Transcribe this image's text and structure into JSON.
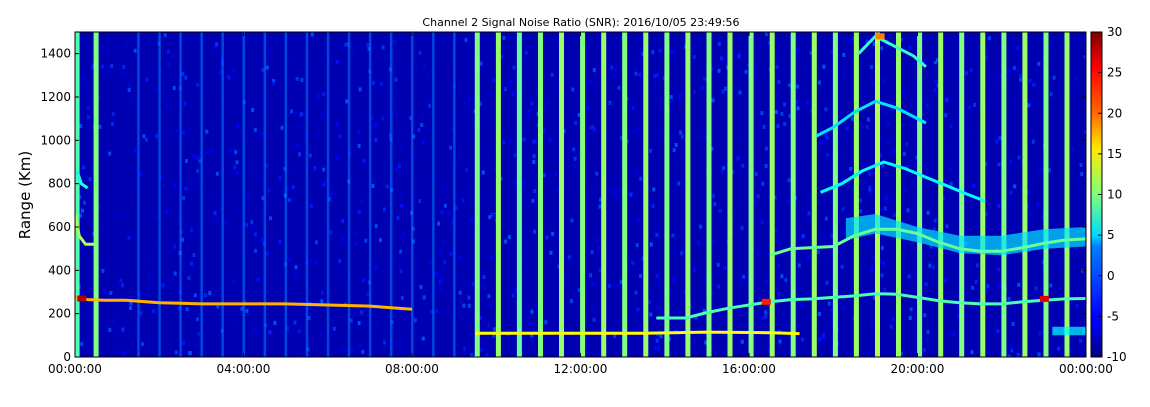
{
  "chart_data": {
    "type": "heatmap",
    "title": "Channel 2 Signal Noise Ratio (SNR): 2016/10/05 23:49:56",
    "xlabel": "",
    "ylabel": "Range (Km)",
    "x_range_hours": [
      0,
      24
    ],
    "y_range_km": [
      0,
      1500
    ],
    "x_ticks": [
      {
        "hour": 0,
        "label": "00:00:00"
      },
      {
        "hour": 4,
        "label": "04:00:00"
      },
      {
        "hour": 8,
        "label": "08:00:00"
      },
      {
        "hour": 12,
        "label": "12:00:00"
      },
      {
        "hour": 16,
        "label": "16:00:00"
      },
      {
        "hour": 20,
        "label": "20:00:00"
      },
      {
        "hour": 24,
        "label": "00:00:00"
      }
    ],
    "y_ticks": [
      0,
      200,
      400,
      600,
      800,
      1000,
      1200,
      1400
    ],
    "colorbar": {
      "min": -10,
      "max": 30,
      "colormap": "jet",
      "ticks": [
        -10,
        -5,
        0,
        5,
        10,
        15,
        20,
        25,
        30
      ]
    },
    "background_snr": -8,
    "vertical_streaks": [
      {
        "hour": 0.05,
        "snr": 8
      },
      {
        "hour": 0.5,
        "snr": 10
      },
      {
        "hour": 9.55,
        "snr": 10
      },
      {
        "hour": 10.05,
        "snr": 11
      },
      {
        "hour": 10.55,
        "snr": 9
      },
      {
        "hour": 11.05,
        "snr": 10
      },
      {
        "hour": 11.55,
        "snr": 11
      },
      {
        "hour": 12.05,
        "snr": 10
      },
      {
        "hour": 12.55,
        "snr": 11
      },
      {
        "hour": 13.05,
        "snr": 10
      },
      {
        "hour": 13.55,
        "snr": 11
      },
      {
        "hour": 14.05,
        "snr": 10
      },
      {
        "hour": 14.55,
        "snr": 11
      },
      {
        "hour": 15.05,
        "snr": 10
      },
      {
        "hour": 15.55,
        "snr": 11
      },
      {
        "hour": 16.05,
        "snr": 10
      },
      {
        "hour": 16.55,
        "snr": 11
      },
      {
        "hour": 17.05,
        "snr": 10
      },
      {
        "hour": 17.55,
        "snr": 11
      },
      {
        "hour": 18.05,
        "snr": 10
      },
      {
        "hour": 18.55,
        "snr": 11
      },
      {
        "hour": 19.05,
        "snr": 12
      },
      {
        "hour": 19.55,
        "snr": 11
      },
      {
        "hour": 20.05,
        "snr": 10
      },
      {
        "hour": 20.55,
        "snr": 11
      },
      {
        "hour": 21.05,
        "snr": 10
      },
      {
        "hour": 21.55,
        "snr": 11
      },
      {
        "hour": 22.05,
        "snr": 10
      },
      {
        "hour": 22.55,
        "snr": 11
      },
      {
        "hour": 23.05,
        "snr": 10
      },
      {
        "hour": 23.55,
        "snr": 11
      }
    ],
    "weak_streaks_hours": [
      1.5,
      2.0,
      2.5,
      3.0,
      3.5,
      4.0,
      4.5,
      5.0,
      5.5,
      6.0,
      6.5,
      7.0,
      7.5,
      8.0,
      8.5,
      9.0
    ],
    "echo_traces": [
      {
        "name": "",
        "snr": 15,
        "points": [
          [
            9.5,
            110
          ],
          [
            10.5,
            110
          ],
          [
            12.0,
            110
          ],
          [
            13.5,
            110
          ],
          [
            15.0,
            115
          ],
          [
            16.5,
            112
          ],
          [
            17.2,
            108
          ]
        ]
      },
      {
        "name": "",
        "snr": 8,
        "points": [
          [
            13.8,
            180
          ],
          [
            14.5,
            180
          ],
          [
            15.0,
            205
          ],
          [
            15.5,
            225
          ],
          [
            16.0,
            240
          ],
          [
            16.5,
            255
          ],
          [
            17.0,
            265
          ],
          [
            17.5,
            268
          ],
          [
            18.0,
            275
          ],
          [
            18.5,
            282
          ],
          [
            19.0,
            292
          ],
          [
            19.5,
            290
          ],
          [
            20.0,
            275
          ],
          [
            20.5,
            260
          ],
          [
            21.0,
            250
          ],
          [
            21.5,
            245
          ],
          [
            22.0,
            245
          ],
          [
            22.5,
            255
          ],
          [
            23.0,
            262
          ],
          [
            23.5,
            268
          ],
          [
            24.0,
            270
          ]
        ]
      },
      {
        "name": "",
        "snr": 18,
        "points": [
          [
            0.0,
            275
          ],
          [
            0.3,
            265
          ],
          [
            0.7,
            262
          ],
          [
            1.2,
            262
          ],
          [
            2.0,
            250
          ],
          [
            2.5,
            248
          ],
          [
            3.0,
            245
          ],
          [
            4.0,
            245
          ],
          [
            5.0,
            245
          ],
          [
            6.0,
            240
          ],
          [
            7.0,
            235
          ],
          [
            8.0,
            220
          ]
        ]
      },
      {
        "name": "",
        "snr": 9,
        "points": [
          [
            16.5,
            470
          ],
          [
            17.0,
            500
          ],
          [
            17.5,
            505
          ],
          [
            18.0,
            510
          ],
          [
            18.5,
            560
          ],
          [
            19.0,
            590
          ],
          [
            19.5,
            590
          ],
          [
            20.0,
            570
          ],
          [
            20.5,
            530
          ],
          [
            21.0,
            500
          ],
          [
            21.5,
            488
          ],
          [
            22.0,
            488
          ],
          [
            22.5,
            505
          ],
          [
            23.0,
            525
          ],
          [
            23.5,
            540
          ],
          [
            24.0,
            545
          ]
        ]
      },
      {
        "name": "",
        "snr": 5,
        "points": [
          [
            17.7,
            760
          ],
          [
            18.2,
            800
          ],
          [
            18.7,
            860
          ],
          [
            19.2,
            900
          ],
          [
            19.7,
            870
          ],
          [
            20.2,
            830
          ],
          [
            20.7,
            790
          ],
          [
            21.2,
            750
          ],
          [
            21.6,
            720
          ]
        ]
      },
      {
        "name": "",
        "snr": 4,
        "points": [
          [
            17.6,
            1020
          ],
          [
            18.0,
            1060
          ],
          [
            18.5,
            1130
          ],
          [
            19.0,
            1180
          ],
          [
            19.5,
            1150
          ],
          [
            19.9,
            1110
          ],
          [
            20.2,
            1080
          ]
        ]
      },
      {
        "name": "",
        "snr": 7,
        "points": [
          [
            18.6,
            1400
          ],
          [
            19.0,
            1480
          ],
          [
            19.5,
            1430
          ],
          [
            19.9,
            1390
          ],
          [
            20.2,
            1340
          ]
        ]
      },
      {
        "name": "",
        "snr": 12,
        "points": [
          [
            0.0,
            660
          ],
          [
            0.1,
            560
          ],
          [
            0.25,
            520
          ],
          [
            0.45,
            520
          ]
        ]
      },
      {
        "name": "",
        "snr": 6,
        "points": [
          [
            0.05,
            860
          ],
          [
            0.15,
            800
          ],
          [
            0.3,
            780
          ]
        ]
      }
    ],
    "echo_bands": [
      {
        "name": "",
        "snr": 4,
        "top": [
          [
            18.3,
            640
          ],
          [
            19.0,
            660
          ],
          [
            20.0,
            600
          ],
          [
            21.0,
            560
          ],
          [
            22.0,
            560
          ],
          [
            23.0,
            590
          ],
          [
            24.0,
            600
          ]
        ],
        "bottom": [
          [
            18.3,
            540
          ],
          [
            19.0,
            570
          ],
          [
            20.0,
            530
          ],
          [
            21.0,
            480
          ],
          [
            22.0,
            470
          ],
          [
            23.0,
            500
          ],
          [
            24.0,
            510
          ]
        ]
      },
      {
        "name": "",
        "snr": 5,
        "top": [
          [
            23.2,
            140
          ],
          [
            24.0,
            140
          ]
        ],
        "bottom": [
          [
            23.2,
            100
          ],
          [
            24.0,
            100
          ]
        ]
      }
    ],
    "hotspots": [
      {
        "hour": 0.15,
        "km": 270,
        "snr": 28
      },
      {
        "hour": 16.4,
        "km": 255,
        "snr": 24
      },
      {
        "hour": 23.0,
        "km": 268,
        "snr": 26
      },
      {
        "hour": 19.1,
        "km": 1480,
        "snr": 20
      }
    ]
  }
}
